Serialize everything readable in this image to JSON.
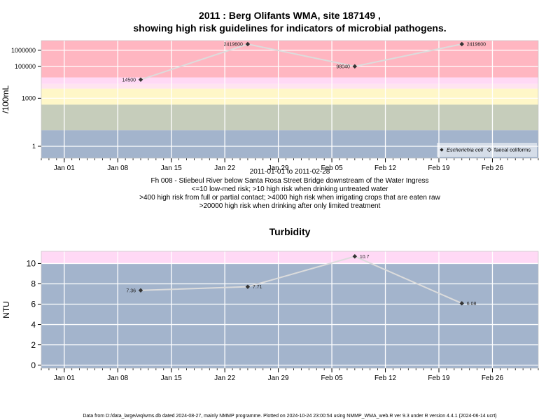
{
  "title": {
    "line1": "2011 : Berg Olifants WMA, site 187149 ,",
    "line2": "showing high risk guidelines for indicators of microbial pathogens."
  },
  "x_ticks": [
    "Jan 01",
    "Jan 08",
    "Jan 15",
    "Jan 22",
    "Jan 29",
    "Feb 05",
    "Feb 12",
    "Feb 19",
    "Feb 26"
  ],
  "x_tick_dates": [
    "2011-01-01",
    "2011-01-08",
    "2011-01-15",
    "2011-01-22",
    "2011-01-29",
    "2011-02-05",
    "2011-02-12",
    "2011-02-19",
    "2011-02-26"
  ],
  "caption": {
    "line1": "2011-01-01 to 2011-02-28",
    "line2": "Fh 008 - Stiebeul River below Santa Rosa Street Bridge downstream of the Water Ingress",
    "line3": "<=10 low-med risk; >10 high risk when drinking untreated water",
    "line4": ">400 high risk from full or partial contact; >4000 high risk when irrigating crops that are eaten raw",
    "line5": ">20000 high risk when drinking after only limited treatment"
  },
  "footer": "Data from D:/data_large/wq/wms.db dated 2024-08-27, mainly NMMP programme. Plotted on 2024-10-24 23:00:54 using NMMP_WMA_web.R ver 9.3 under R version 4.4.1 (2024-06-14 ucrt)",
  "colors": {
    "red_band": "#ffb6c1",
    "pink_band": "#ffe4f0",
    "lavender_band": "#ffd9f5",
    "yellow_band": "#fff7c8",
    "sage_band": "#c6cdbb",
    "blue_band": "#a3b4cc",
    "gridline": "#ffffff",
    "series_line": "#dcdcdc",
    "marker": "#333333"
  },
  "chart_data": [
    {
      "type": "line",
      "ylabel": "/100mL",
      "yscale": "log",
      "ylim": [
        0.18,
        4000000
      ],
      "y_ticks": [
        1,
        1000,
        100000,
        1000000
      ],
      "y_tick_labels": [
        "1",
        "1000",
        "100000",
        "1000000"
      ],
      "xlim": [
        "2010-12-29",
        "2011-03-04"
      ],
      "grid": true,
      "bands": [
        {
          "from": 0.18,
          "to": 10,
          "color": "#a3b4cc"
        },
        {
          "from": 10,
          "to": 400,
          "color": "#c6cdbb"
        },
        {
          "from": 400,
          "to": 4000,
          "color": "#fff7c8"
        },
        {
          "from": 4000,
          "to": 8000,
          "color": "#ffe4f0"
        },
        {
          "from": 8000,
          "to": 20000,
          "color": "#ffd9f5"
        },
        {
          "from": 20000,
          "to": 4000000,
          "color": "#ffb6c1"
        }
      ],
      "legend": {
        "placement": "bottom-right",
        "entries": [
          {
            "label": "Escherichia coli",
            "marker": "filled-diamond",
            "italic": true
          },
          {
            "label": "faecal coliforms",
            "marker": "open-diamond",
            "italic": false
          }
        ]
      },
      "series": [
        {
          "name": "Escherichia coli",
          "x": [
            "2011-01-11",
            "2011-01-25",
            "2011-02-08",
            "2011-02-22"
          ],
          "y": [
            14500,
            2419600,
            98040,
            2419600
          ],
          "labels": [
            "14500",
            "2419600",
            "98040",
            "2419600"
          ],
          "label_side": [
            "left",
            "left",
            "left",
            "right"
          ]
        }
      ]
    },
    {
      "type": "line",
      "title": "Turbidity",
      "ylabel": "NTU",
      "ylim": [
        -0.3,
        11.2
      ],
      "y_ticks": [
        0,
        2,
        4,
        6,
        8,
        10
      ],
      "y_tick_labels": [
        "0",
        "2",
        "4",
        "6",
        "8",
        "10"
      ],
      "xlim": [
        "2010-12-29",
        "2011-03-04"
      ],
      "grid": true,
      "bands": [
        {
          "from": -0.3,
          "to": 10,
          "color": "#a3b4cc"
        },
        {
          "from": 10,
          "to": 11.2,
          "color": "#ffd9f5"
        }
      ],
      "series": [
        {
          "x": [
            "2011-01-11",
            "2011-01-25",
            "2011-02-08",
            "2011-02-22"
          ],
          "y": [
            7.36,
            7.71,
            10.7,
            6.08
          ],
          "labels": [
            "7.36",
            "7.71",
            "10.7",
            "6.08"
          ],
          "label_side": [
            "left",
            "right",
            "right",
            "right"
          ]
        }
      ]
    }
  ]
}
